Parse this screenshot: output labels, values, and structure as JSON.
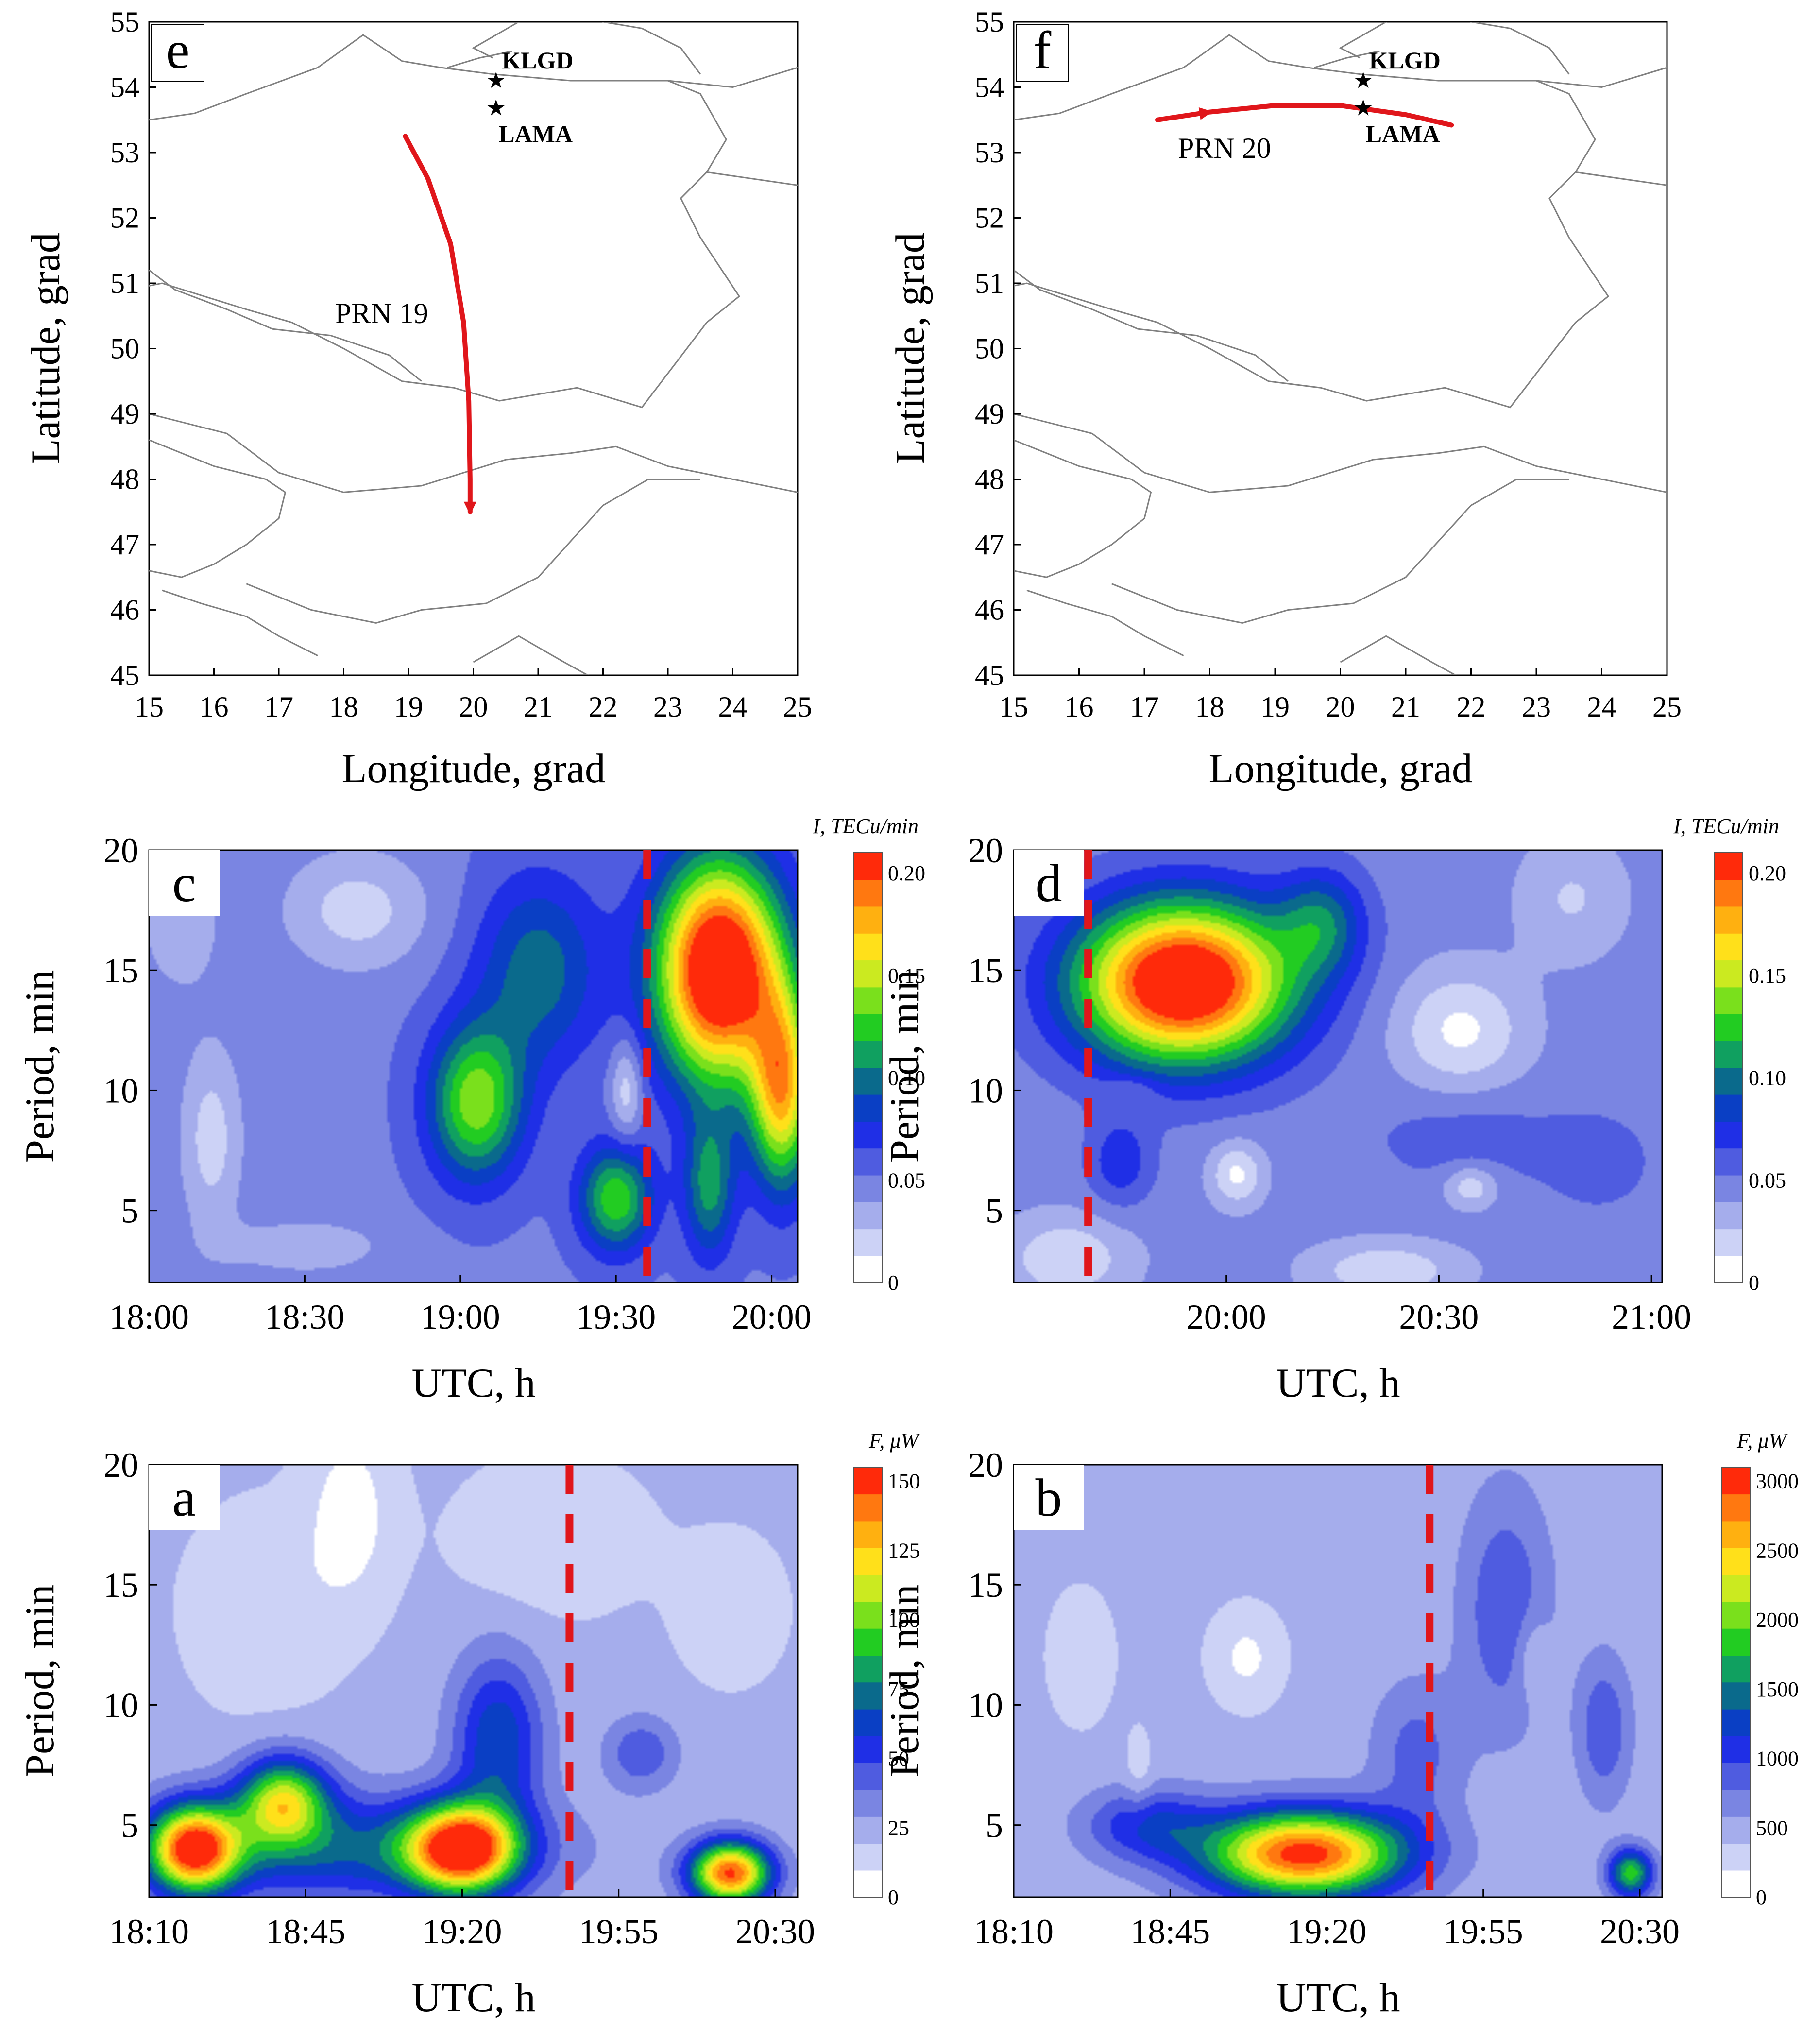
{
  "colors": {
    "track": "#e0161b",
    "event_line": "#e0161b",
    "border": "#808080",
    "colormap": [
      "#ffffff",
      "#ccd2f6",
      "#a5adec",
      "#7a85e2",
      "#4f5ce0",
      "#1f2fe6",
      "#0a3fc4",
      "#0a6a8c",
      "#10a060",
      "#22cc22",
      "#7ae01c",
      "#cbea20",
      "#ffe01a",
      "#ffb010",
      "#ff7810",
      "#ff2a0a"
    ]
  },
  "maps": [
    {
      "label": "e",
      "xlabel": "Longitude, grad",
      "ylabel": "Latitude, grad",
      "xlim": [
        15,
        25
      ],
      "ylim": [
        45,
        55
      ],
      "xticks": [
        "15",
        "16",
        "17",
        "18",
        "19",
        "20",
        "21",
        "22",
        "23",
        "24",
        "25"
      ],
      "yticks": [
        "45",
        "46",
        "47",
        "48",
        "49",
        "50",
        "51",
        "52",
        "53",
        "54",
        "55"
      ],
      "stations": [
        {
          "name": "KLGD",
          "lon": 20.35,
          "lat": 54.1
        },
        {
          "name": "LAMA",
          "lon": 20.35,
          "lat": 53.68
        }
      ],
      "track_label": "PRN 19",
      "track": {
        "lon": [
          18.95,
          19.3,
          19.65,
          19.85,
          19.93,
          19.95,
          19.95
        ],
        "lat": [
          53.25,
          52.6,
          51.6,
          50.4,
          49.2,
          48.0,
          47.5
        ]
      }
    },
    {
      "label": "f",
      "xlabel": "Longitude, grad",
      "ylabel": "Latitude, grad",
      "xlim": [
        15,
        25
      ],
      "ylim": [
        45,
        55
      ],
      "xticks": [
        "15",
        "16",
        "17",
        "18",
        "19",
        "20",
        "21",
        "22",
        "23",
        "24",
        "25"
      ],
      "yticks": [
        "45",
        "46",
        "47",
        "48",
        "49",
        "50",
        "51",
        "52",
        "53",
        "54",
        "55"
      ],
      "stations": [
        {
          "name": "KLGD",
          "lon": 20.35,
          "lat": 54.1
        },
        {
          "name": "LAMA",
          "lon": 20.35,
          "lat": 53.68
        }
      ],
      "track_label": "PRN 20",
      "track": {
        "lon": [
          17.2,
          18.0,
          19.0,
          20.0,
          21.0,
          21.7
        ],
        "lat": [
          53.5,
          53.62,
          53.72,
          53.72,
          53.58,
          53.42
        ]
      }
    }
  ],
  "chart_data": [
    {
      "type": "heatmap",
      "label": "c",
      "xlabel": "UTC, h",
      "ylabel": "Period, min",
      "xlim": [
        0,
        125
      ],
      "ylim": [
        2,
        20
      ],
      "xticks": [
        "18:00",
        "18:30",
        "19:00",
        "19:30",
        "20:00"
      ],
      "xtick_pos": [
        0,
        30,
        60,
        90,
        120
      ],
      "yticks": [
        "5",
        "10",
        "15",
        "20"
      ],
      "colorbar": {
        "title": "I, TECu/min",
        "min": 0,
        "max": 0.21,
        "ticks": [
          "0",
          "0.05",
          "0.10",
          "0.15",
          "0.20"
        ],
        "tick_values": [
          0,
          0.05,
          0.1,
          0.15,
          0.2
        ]
      },
      "event_x": 96,
      "base": 0.05,
      "blobs": [
        [
          110,
          15,
          12,
          4.5,
          0.19
        ],
        [
          122,
          10,
          6,
          4,
          0.12
        ],
        [
          108,
          6,
          5,
          3,
          0.06
        ],
        [
          63,
          9.5,
          9,
          3.2,
          0.09
        ],
        [
          90,
          5.5,
          7,
          2.2,
          0.08
        ],
        [
          75,
          15,
          12,
          4,
          0.05
        ],
        [
          40,
          17.5,
          14,
          2.5,
          -0.03
        ],
        [
          12,
          8,
          6,
          4,
          -0.03
        ],
        [
          6,
          17,
          8,
          3,
          -0.02
        ],
        [
          92,
          10,
          3,
          2.2,
          -0.035
        ],
        [
          30,
          3.5,
          16,
          1.2,
          -0.02
        ]
      ]
    },
    {
      "type": "heatmap",
      "label": "d",
      "xlabel": "UTC, h",
      "ylabel": "Period, min",
      "xlim": [
        0,
        122
      ],
      "ylim": [
        2,
        20
      ],
      "xticks": [
        "20:00",
        "20:30",
        "21:00"
      ],
      "xtick_pos": [
        40,
        80,
        120
      ],
      "yticks": [
        "5",
        "10",
        "15",
        "20"
      ],
      "colorbar": {
        "title": "I, TECu/min",
        "min": 0,
        "max": 0.21,
        "ticks": [
          "0",
          "0.05",
          "0.10",
          "0.15",
          "0.20"
        ],
        "tick_values": [
          0,
          0.05,
          0.1,
          0.15,
          0.2
        ]
      },
      "event_x": 14,
      "base": 0.045,
      "blobs": [
        [
          32,
          14.5,
          20,
          3.3,
          0.19
        ],
        [
          58,
          17,
          8,
          2.2,
          0.05
        ],
        [
          20,
          7,
          6,
          1.8,
          0.03
        ],
        [
          85,
          8,
          18,
          2,
          0.015
        ],
        [
          110,
          7,
          10,
          2,
          0.015
        ],
        [
          84,
          12.5,
          12,
          2.5,
          -0.035
        ],
        [
          42,
          6.5,
          5,
          1.3,
          -0.035
        ],
        [
          86,
          6,
          5,
          0.9,
          -0.03
        ],
        [
          105,
          18,
          10,
          2.5,
          -0.02
        ],
        [
          10,
          3,
          12,
          1.8,
          -0.03
        ],
        [
          70,
          2.5,
          14,
          1.2,
          -0.03
        ],
        [
          22,
          10,
          5,
          0.6,
          -0.015
        ]
      ]
    },
    {
      "type": "heatmap",
      "label": "a",
      "xlabel": "UTC, h",
      "ylabel": "Period, min",
      "xlim": [
        0,
        145
      ],
      "ylim": [
        2,
        20
      ],
      "xticks": [
        "18:10",
        "18:45",
        "19:20",
        "19:55",
        "20:30"
      ],
      "xtick_pos": [
        0,
        35,
        70,
        105,
        140
      ],
      "yticks": [
        "5",
        "10",
        "15",
        "20"
      ],
      "colorbar": {
        "title": "F, μW",
        "min": 0,
        "max": 155,
        "ticks": [
          "0",
          "25",
          "50",
          "75",
          "100",
          "125",
          "150"
        ],
        "tick_values": [
          0,
          25,
          50,
          75,
          100,
          125,
          150
        ]
      },
      "event_x": 94,
      "base": 22,
      "blobs": [
        [
          10,
          4,
          10,
          1.8,
          125
        ],
        [
          70,
          4,
          12,
          1.8,
          125
        ],
        [
          130,
          3,
          9,
          1.3,
          125
        ],
        [
          30,
          6,
          10,
          1.8,
          85
        ],
        [
          45,
          4,
          40,
          2.2,
          45
        ],
        [
          78,
          8.5,
          10,
          3.5,
          45
        ],
        [
          110,
          8,
          8,
          1.5,
          25
        ],
        [
          45,
          18,
          10,
          4,
          -17
        ],
        [
          25,
          14,
          16,
          4,
          -12
        ],
        [
          90,
          17,
          20,
          3,
          -12
        ],
        [
          130,
          14,
          12,
          3,
          -10
        ]
      ]
    },
    {
      "type": "heatmap",
      "label": "b",
      "xlabel": "UTC, h",
      "ylabel": "Period, min",
      "xlim": [
        0,
        145
      ],
      "ylim": [
        2,
        20
      ],
      "xticks": [
        "18:10",
        "18:45",
        "19:20",
        "19:55",
        "20:30"
      ],
      "xtick_pos": [
        0,
        35,
        70,
        105,
        140
      ],
      "yticks": [
        "5",
        "10",
        "15",
        "20"
      ],
      "colorbar": {
        "title": "F, μW",
        "min": 0,
        "max": 3100,
        "ticks": [
          "0",
          "500",
          "1000",
          "1500",
          "2000",
          "2500",
          "3000"
        ],
        "tick_values": [
          0,
          500,
          1000,
          1500,
          2000,
          2500,
          3000
        ]
      },
      "event_x": 93,
      "base": 450,
      "blobs": [
        [
          65,
          3.8,
          22,
          1.8,
          2600
        ],
        [
          30,
          5,
          14,
          1.5,
          700
        ],
        [
          110,
          14,
          10,
          5,
          500
        ],
        [
          132,
          9,
          6,
          3,
          500
        ],
        [
          90,
          8,
          10,
          3,
          400
        ],
        [
          52,
          12,
          8,
          2,
          -300
        ],
        [
          116,
          12,
          4,
          1.8,
          -280
        ],
        [
          15,
          12,
          8,
          3,
          -180
        ],
        [
          28,
          7,
          3,
          2,
          -200
        ],
        [
          138,
          3,
          5,
          1,
          1400
        ]
      ]
    }
  ]
}
